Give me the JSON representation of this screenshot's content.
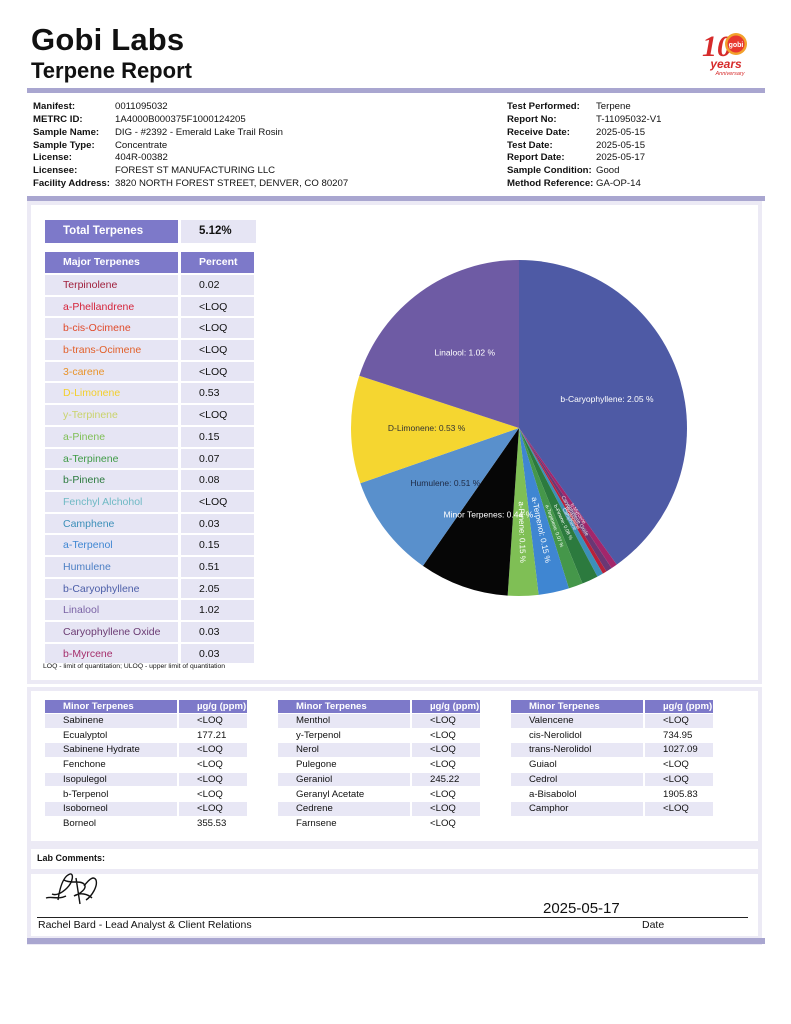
{
  "header": {
    "company": "Gobi Labs",
    "report_title": "Terpene Report",
    "logo": {
      "icon": "gobi-10-years-anniversary-logo",
      "brand_text": "gobi",
      "badge_text": "years",
      "badge_subtext": "Anniversary",
      "number": "10",
      "color": "#d62b2b",
      "accent": "#f2a12c"
    }
  },
  "sample_info": {
    "left": [
      {
        "label": "Manifest:",
        "value": "0011095032"
      },
      {
        "label": "METRC ID:",
        "value": "1A4000B000375F1000124205"
      },
      {
        "label": "Sample Name:",
        "value": "DIG - #2392 - Emerald Lake Trail Rosin"
      },
      {
        "label": "Sample Type:",
        "value": "Concentrate"
      },
      {
        "label": "License:",
        "value": "404R-00382"
      },
      {
        "label": "Licensee:",
        "value": "FOREST ST MANUFACTURING LLC"
      },
      {
        "label": "Facility Address:",
        "value": "3820 NORTH FOREST STREET, DENVER, CO 80207"
      }
    ],
    "right": [
      {
        "label": "Test Performed:",
        "value": "Terpene"
      },
      {
        "label": "Report No:",
        "value": "T-11095032-V1"
      },
      {
        "label": "Receive Date:",
        "value": "2025-05-15"
      },
      {
        "label": "Test Date:",
        "value": "2025-05-15"
      },
      {
        "label": "Report Date:",
        "value": "2025-05-17"
      },
      {
        "label": "Sample Condition:",
        "value": "Good"
      },
      {
        "label": "Method Reference:",
        "value": "GA-OP-14"
      }
    ]
  },
  "total_terpenes": {
    "label": "Total Terpenes",
    "value": "5.12%"
  },
  "major_terpenes": {
    "headers": [
      "Major Terpenes",
      "Percent"
    ],
    "rows": [
      {
        "name": "Terpinolene",
        "value": "0.02",
        "color": "#a0203c"
      },
      {
        "name": "a-Phellandrene",
        "value": "<LOQ",
        "color": "#d5243a"
      },
      {
        "name": "b-cis-Ocimene",
        "value": "<LOQ",
        "color": "#e04a2a"
      },
      {
        "name": "b-trans-Ocimene",
        "value": "<LOQ",
        "color": "#e2602a"
      },
      {
        "name": "3-carene",
        "value": "<LOQ",
        "color": "#e8932a"
      },
      {
        "name": "D-Limonene",
        "value": "0.53",
        "color": "#f2cf2e"
      },
      {
        "name": "y-Terpinene",
        "value": "<LOQ",
        "color": "#c9d36a"
      },
      {
        "name": "a-Pinene",
        "value": "0.15",
        "color": "#7fbf55"
      },
      {
        "name": "a-Terpinene",
        "value": "0.07",
        "color": "#3f9b46"
      },
      {
        "name": "b-Pinene",
        "value": "0.08",
        "color": "#2c7a3e"
      },
      {
        "name": "Fenchyl Alchohol",
        "value": "<LOQ",
        "color": "#6fb9c4"
      },
      {
        "name": "Camphene",
        "value": "0.03",
        "color": "#3c8fb9"
      },
      {
        "name": "a-Terpenol",
        "value": "0.15",
        "color": "#3f86d2"
      },
      {
        "name": "Humulene",
        "value": "0.51",
        "color": "#4c7fc4"
      },
      {
        "name": "b-Caryophyllene",
        "value": "2.05",
        "color": "#4c5ea8"
      },
      {
        "name": "Linalool",
        "value": "1.02",
        "color": "#7a62a5"
      },
      {
        "name": "Caryophyllene Oxide",
        "value": "0.03",
        "color": "#6b3b73"
      },
      {
        "name": "b-Myrcene",
        "value": "0.03",
        "color": "#a52e6b"
      }
    ]
  },
  "loq_note": "LOQ - limit of quantitation; ULOQ - upper limit of quantitation",
  "chart_data": {
    "type": "pie",
    "title": "",
    "slices": [
      {
        "label": "b-Caryophyllene: 2.05 %",
        "value": 2.05,
        "color": "#4e5aa5"
      },
      {
        "label": "b-Myrcene",
        "value": 0.03,
        "color": "#a3266b"
      },
      {
        "label": "Caryophyllene Oxide",
        "value": 0.03,
        "color": "#6a3774"
      },
      {
        "label": "Terpinolene",
        "value": 0.02,
        "color": "#b7213a"
      },
      {
        "label": "Camphene",
        "value": 0.03,
        "color": "#3c8fb9"
      },
      {
        "label": "b-Pinene: 0.08 %",
        "value": 0.08,
        "color": "#2c7a3e"
      },
      {
        "label": "a-Terpinene: 0.07 %",
        "value": 0.07,
        "color": "#45974a"
      },
      {
        "label": "a-Terpenol: 0.15 %",
        "value": 0.15,
        "color": "#3f86d2"
      },
      {
        "label": "a-Pinene: 0.15 %",
        "value": 0.15,
        "color": "#7fbf55"
      },
      {
        "label": "Minor Terpenes: 0.44 %",
        "value": 0.44,
        "color": "#060606"
      },
      {
        "label": "Humulene: 0.51 %",
        "value": 0.51,
        "color": "#5990cc"
      },
      {
        "label": "D-Limonene: 0.53 %",
        "value": 0.53,
        "color": "#f5d630"
      },
      {
        "label": "Linalool: 1.02 %",
        "value": 1.02,
        "color": "#6e5ba4"
      }
    ]
  },
  "minor_tables": [
    {
      "headers": [
        "Minor Terpenes",
        "µg/g (ppm)"
      ],
      "rows": [
        [
          "Sabinene",
          "<LOQ"
        ],
        [
          "Ecualyptol",
          "177.21"
        ],
        [
          "Sabinene Hydrate",
          "<LOQ"
        ],
        [
          "Fenchone",
          "<LOQ"
        ],
        [
          "Isopulegol",
          "<LOQ"
        ],
        [
          "b-Terpenol",
          "<LOQ"
        ],
        [
          "Isoborneol",
          "<LOQ"
        ],
        [
          "Borneol",
          "355.53"
        ]
      ]
    },
    {
      "headers": [
        "Minor Terpenes",
        "µg/g (ppm)"
      ],
      "rows": [
        [
          "Menthol",
          "<LOQ"
        ],
        [
          "y-Terpenol",
          "<LOQ"
        ],
        [
          "Nerol",
          "<LOQ"
        ],
        [
          "Pulegone",
          "<LOQ"
        ],
        [
          "Geraniol",
          "245.22"
        ],
        [
          "Geranyl Acetate",
          "<LOQ"
        ],
        [
          "Cedrene",
          "<LOQ"
        ],
        [
          "Farnsene",
          "<LOQ"
        ]
      ]
    },
    {
      "headers": [
        "Minor Terpenes",
        "µg/g (ppm)"
      ],
      "rows": [
        [
          "Valencene",
          "<LOQ"
        ],
        [
          "cis-Nerolidol",
          "734.95"
        ],
        [
          "trans-Nerolidol",
          "1027.09"
        ],
        [
          "Guiaol",
          "<LOQ"
        ],
        [
          "Cedrol",
          "<LOQ"
        ],
        [
          "a-Bisabolol",
          "1905.83"
        ],
        [
          "Camphor",
          "<LOQ"
        ]
      ]
    }
  ],
  "footer": {
    "comments_label": "Lab Comments:",
    "signature_date": "2025-05-17",
    "signer": "Rachel Bard - Lead Analyst & Client Relations",
    "date_label": "Date"
  }
}
